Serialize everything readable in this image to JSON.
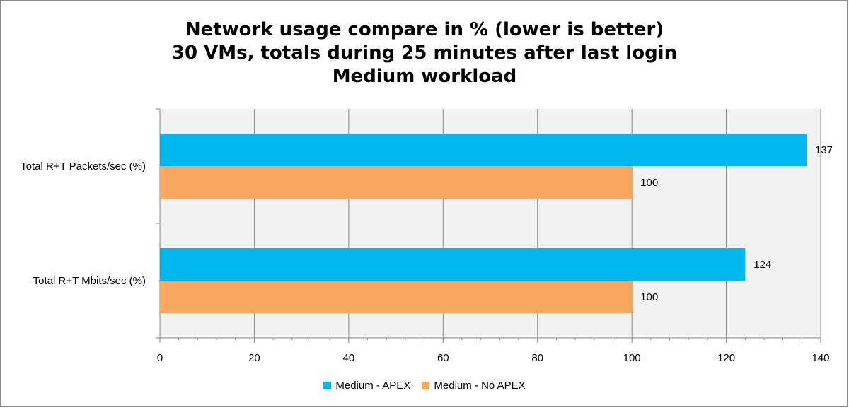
{
  "chart_data": {
    "type": "bar",
    "orientation": "horizontal",
    "title_lines": [
      "Network usage compare in % (lower is better)",
      "30 VMs, totals during 25 minutes after last login",
      "Medium workload"
    ],
    "categories": [
      "Total R+T Packets/sec (%)",
      "Total R+T Mbits/sec (%)"
    ],
    "series": [
      {
        "name": "Medium - APEX",
        "values": [
          137,
          124
        ],
        "color": "#00b8ee"
      },
      {
        "name": "Medium - No APEX",
        "values": [
          100,
          100
        ],
        "color": "#f7a75e"
      }
    ],
    "xlim": [
      0,
      140
    ],
    "x_ticks": [
      0,
      20,
      40,
      60,
      80,
      100,
      120,
      140
    ],
    "grid": true,
    "plot_background": "#f2f2f2",
    "legend_position": "bottom"
  }
}
